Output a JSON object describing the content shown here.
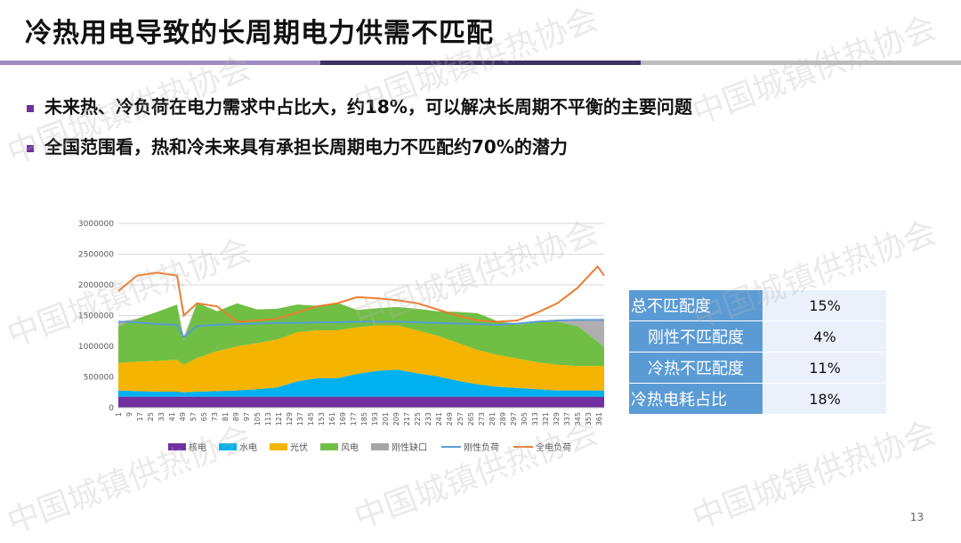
{
  "slide": {
    "title": "冷热用电导致的长周期电力供需不匹配",
    "bullets": [
      "未来热、冷负荷在电力需求中占比大，约18%，可以解决长周期不平衡的主要问题",
      "全国范围看，热和冷未来具有承担长周期电力不匹配约70%的潜力"
    ],
    "watermark": "中国城镇供热协会",
    "page_number": "13",
    "accent": "#7030a0"
  },
  "stats_table": [
    {
      "label": "总不匹配度",
      "value": "15%"
    },
    {
      "label": "刚性不匹配度",
      "value": "4%"
    },
    {
      "label": "冷热不匹配度",
      "value": "11%"
    },
    {
      "label": "冷热电耗占比",
      "value": "18%"
    }
  ],
  "chart_data": {
    "type": "area",
    "x_ticks": [
      1,
      9,
      17,
      25,
      33,
      41,
      49,
      57,
      65,
      73,
      81,
      89,
      97,
      105,
      113,
      121,
      129,
      137,
      145,
      153,
      161,
      169,
      177,
      185,
      193,
      201,
      209,
      217,
      225,
      233,
      241,
      249,
      257,
      265,
      273,
      281,
      289,
      297,
      305,
      313,
      321,
      329,
      337,
      345,
      353,
      361
    ],
    "x_range": [
      1,
      365
    ],
    "ylim": [
      0,
      3000000
    ],
    "y_ticks": [
      0,
      500000,
      1000000,
      1500000,
      2000000,
      2500000,
      3000000
    ],
    "grid": true,
    "legend_position": "bottom",
    "sample_days": [
      1,
      15,
      30,
      45,
      50,
      60,
      75,
      90,
      105,
      120,
      135,
      150,
      165,
      180,
      195,
      210,
      225,
      240,
      255,
      270,
      285,
      300,
      315,
      330,
      345,
      360,
      365
    ],
    "series": [
      {
        "name": "核电",
        "color": "#7030a0",
        "kind": "stack",
        "values": [
          180000,
          180000,
          180000,
          180000,
          180000,
          180000,
          180000,
          180000,
          180000,
          180000,
          180000,
          180000,
          180000,
          180000,
          180000,
          180000,
          180000,
          180000,
          180000,
          180000,
          180000,
          180000,
          180000,
          180000,
          180000,
          180000,
          180000
        ]
      },
      {
        "name": "水电",
        "color": "#00b0f0",
        "kind": "stack",
        "values": [
          100000,
          90000,
          80000,
          80000,
          70000,
          80000,
          90000,
          100000,
          120000,
          150000,
          250000,
          300000,
          300000,
          370000,
          420000,
          440000,
          380000,
          330000,
          260000,
          200000,
          160000,
          140000,
          120000,
          100000,
          100000,
          100000,
          100000
        ]
      },
      {
        "name": "光伏",
        "color": "#f4b400",
        "kind": "stack",
        "values": [
          450000,
          480000,
          500000,
          520000,
          450000,
          550000,
          650000,
          720000,
          750000,
          780000,
          800000,
          780000,
          780000,
          760000,
          740000,
          720000,
          700000,
          660000,
          620000,
          560000,
          520000,
          480000,
          440000,
          420000,
          400000,
          400000,
          400000
        ]
      },
      {
        "name": "风电",
        "color": "#70bf44",
        "kind": "stack",
        "values": [
          600000,
          700000,
          800000,
          900000,
          400000,
          900000,
          650000,
          700000,
          550000,
          500000,
          450000,
          400000,
          450000,
          280000,
          280000,
          300000,
          350000,
          400000,
          500000,
          600000,
          550000,
          550000,
          650000,
          700000,
          650000,
          400000,
          300000
        ]
      },
      {
        "name": "刚性缺口",
        "color": "#a6a6a6",
        "kind": "fill_to_line"
      },
      {
        "name": "刚性负荷",
        "color": "#5b9bd5",
        "kind": "line",
        "values": [
          1400000,
          1390000,
          1360000,
          1350000,
          1150000,
          1330000,
          1350000,
          1360000,
          1370000,
          1380000,
          1380000,
          1390000,
          1390000,
          1400000,
          1400000,
          1400000,
          1390000,
          1380000,
          1370000,
          1360000,
          1350000,
          1370000,
          1400000,
          1420000,
          1430000,
          1430000,
          1430000
        ]
      },
      {
        "name": "全电负荷",
        "color": "#ed7d31",
        "kind": "line",
        "values": [
          1900000,
          2150000,
          2200000,
          2150000,
          1500000,
          1700000,
          1650000,
          1400000,
          1420000,
          1450000,
          1550000,
          1650000,
          1700000,
          1800000,
          1780000,
          1750000,
          1700000,
          1600000,
          1500000,
          1420000,
          1400000,
          1420000,
          1550000,
          1700000,
          1950000,
          2300000,
          2150000
        ]
      }
    ]
  }
}
